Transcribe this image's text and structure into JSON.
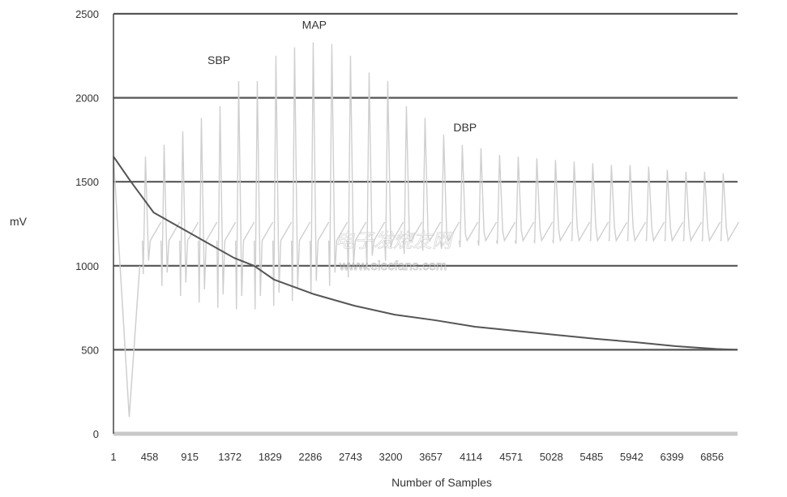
{
  "chart_data": {
    "type": "line",
    "title": "",
    "xlabel": "Number of Samples",
    "ylabel": "mV",
    "xlim": [
      1,
      7100
    ],
    "ylim": [
      0,
      2500
    ],
    "grid": true,
    "x_ticks": [
      "1",
      "458",
      "915",
      "1372",
      "1829",
      "2286",
      "2743",
      "3200",
      "3657",
      "4114",
      "4571",
      "5028",
      "5485",
      "5942",
      "6399",
      "6856"
    ],
    "x_tick_values": [
      1,
      458,
      915,
      1372,
      1829,
      2286,
      2743,
      3200,
      3657,
      4114,
      4571,
      5028,
      5485,
      5942,
      6399,
      6856
    ],
    "y_ticks": [
      "0",
      "500",
      "1000",
      "1500",
      "2000",
      "2500"
    ],
    "y_tick_values": [
      0,
      500,
      1000,
      1500,
      2000,
      2500
    ],
    "annotations": [
      {
        "text": "MAP",
        "x": 2286,
        "y": 2410
      },
      {
        "text": "SBP",
        "x": 1200,
        "y": 2200
      },
      {
        "text": "DBP",
        "x": 4000,
        "y": 1800
      }
    ],
    "series": [
      {
        "role": "cuff-pressure",
        "color": "#555555",
        "x": [
          1,
          200,
          458,
          915,
          1372,
          1600,
          1829,
          2286,
          2743,
          3200,
          3657,
          4114,
          4571,
          5028,
          5485,
          5942,
          6399,
          6856,
          7100
        ],
        "y": [
          1650,
          1500,
          1317,
          1182,
          1047,
          1000,
          917,
          830,
          762,
          709,
          676,
          637,
          613,
          589,
          565,
          545,
          521,
          505,
          500
        ]
      },
      {
        "role": "oscillation",
        "color": "#cfcfcf",
        "start_x": [
          1,
          180,
          300
        ],
        "start_y": [
          1650,
          100,
          1000
        ],
        "beat_x": [
          330,
          542,
          754,
          966,
          1178,
          1390,
          1602,
          1814,
          2026,
          2238,
          2450,
          2662,
          2874,
          3086,
          3298,
          3510,
          3722,
          3934,
          4146,
          4358,
          4570,
          4782,
          4994,
          5206,
          5418,
          5630,
          5842,
          6054,
          6266,
          6478,
          6690,
          6902
        ],
        "beat_high": [
          1650,
          1720,
          1800,
          1880,
          1950,
          2100,
          2100,
          2250,
          2300,
          2330,
          2320,
          2250,
          2150,
          2100,
          1950,
          1880,
          1780,
          1720,
          1700,
          1660,
          1650,
          1640,
          1630,
          1620,
          1610,
          1600,
          1600,
          1590,
          1570,
          1560,
          1560,
          1550
        ],
        "beat_low": [
          950,
          880,
          820,
          780,
          750,
          740,
          740,
          760,
          790,
          830,
          880,
          930,
          980,
          1030,
          1070,
          1090,
          1100,
          1110,
          1120,
          1130,
          1130,
          1140,
          1140,
          1150,
          1150,
          1150,
          1150,
          1150,
          1150,
          1150,
          1150,
          1150
        ]
      }
    ]
  },
  "watermark": {
    "line1": "电子发烧友网",
    "line2": "www.elecfans.com"
  }
}
